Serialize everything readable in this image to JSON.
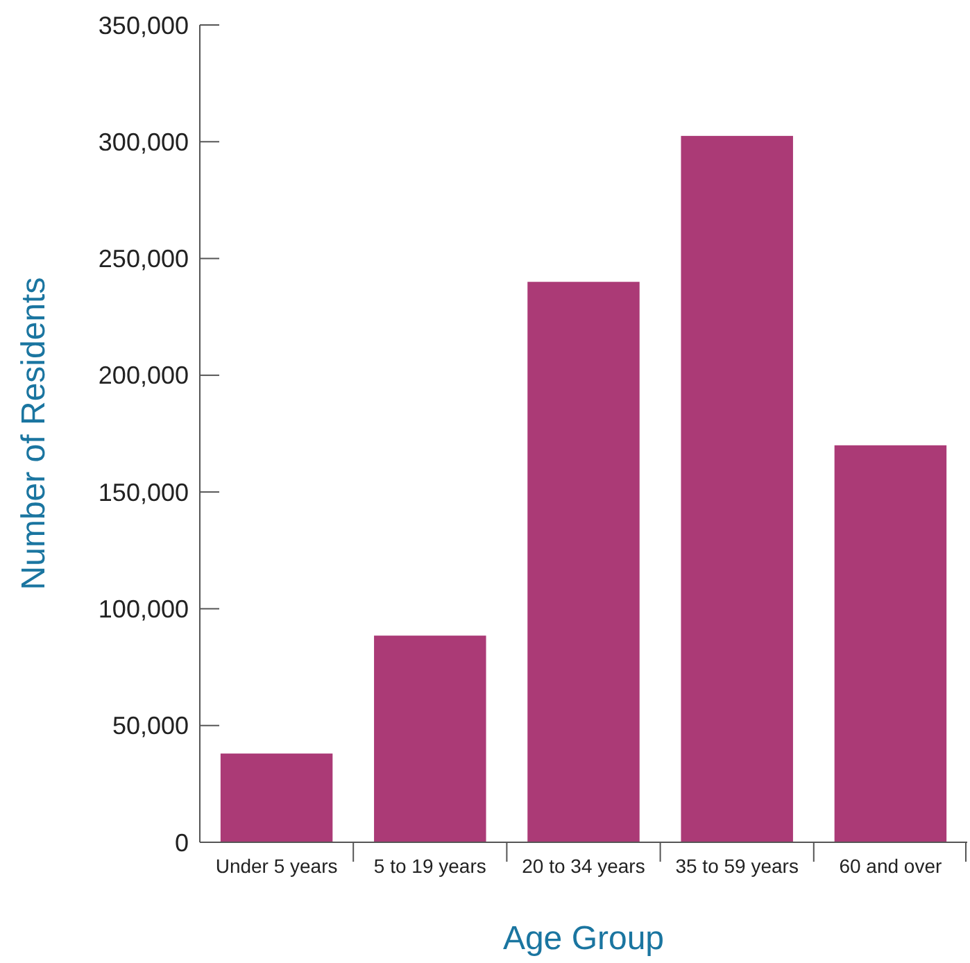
{
  "chart_data": {
    "type": "bar",
    "xlabel": "Age Group",
    "ylabel": "Number of Residents",
    "categories": [
      "Under 5 years",
      "5 to 19 years",
      "20 to 34 years",
      "35 to 59 years",
      "60 and over"
    ],
    "values": [
      38000,
      88500,
      240000,
      302500,
      170000
    ],
    "color": "#ab3a76",
    "ylim": [
      0,
      350000
    ],
    "yticks": [
      {
        "value": 0,
        "label": "0"
      },
      {
        "value": 50000,
        "label": "50,000"
      },
      {
        "value": 100000,
        "label": "100,000"
      },
      {
        "value": 150000,
        "label": "150,000"
      },
      {
        "value": 200000,
        "label": "200,000"
      },
      {
        "value": 250000,
        "label": "250,000"
      },
      {
        "value": 300000,
        "label": "300,000"
      },
      {
        "value": 350000,
        "label": "350,000"
      }
    ],
    "grid": false
  }
}
